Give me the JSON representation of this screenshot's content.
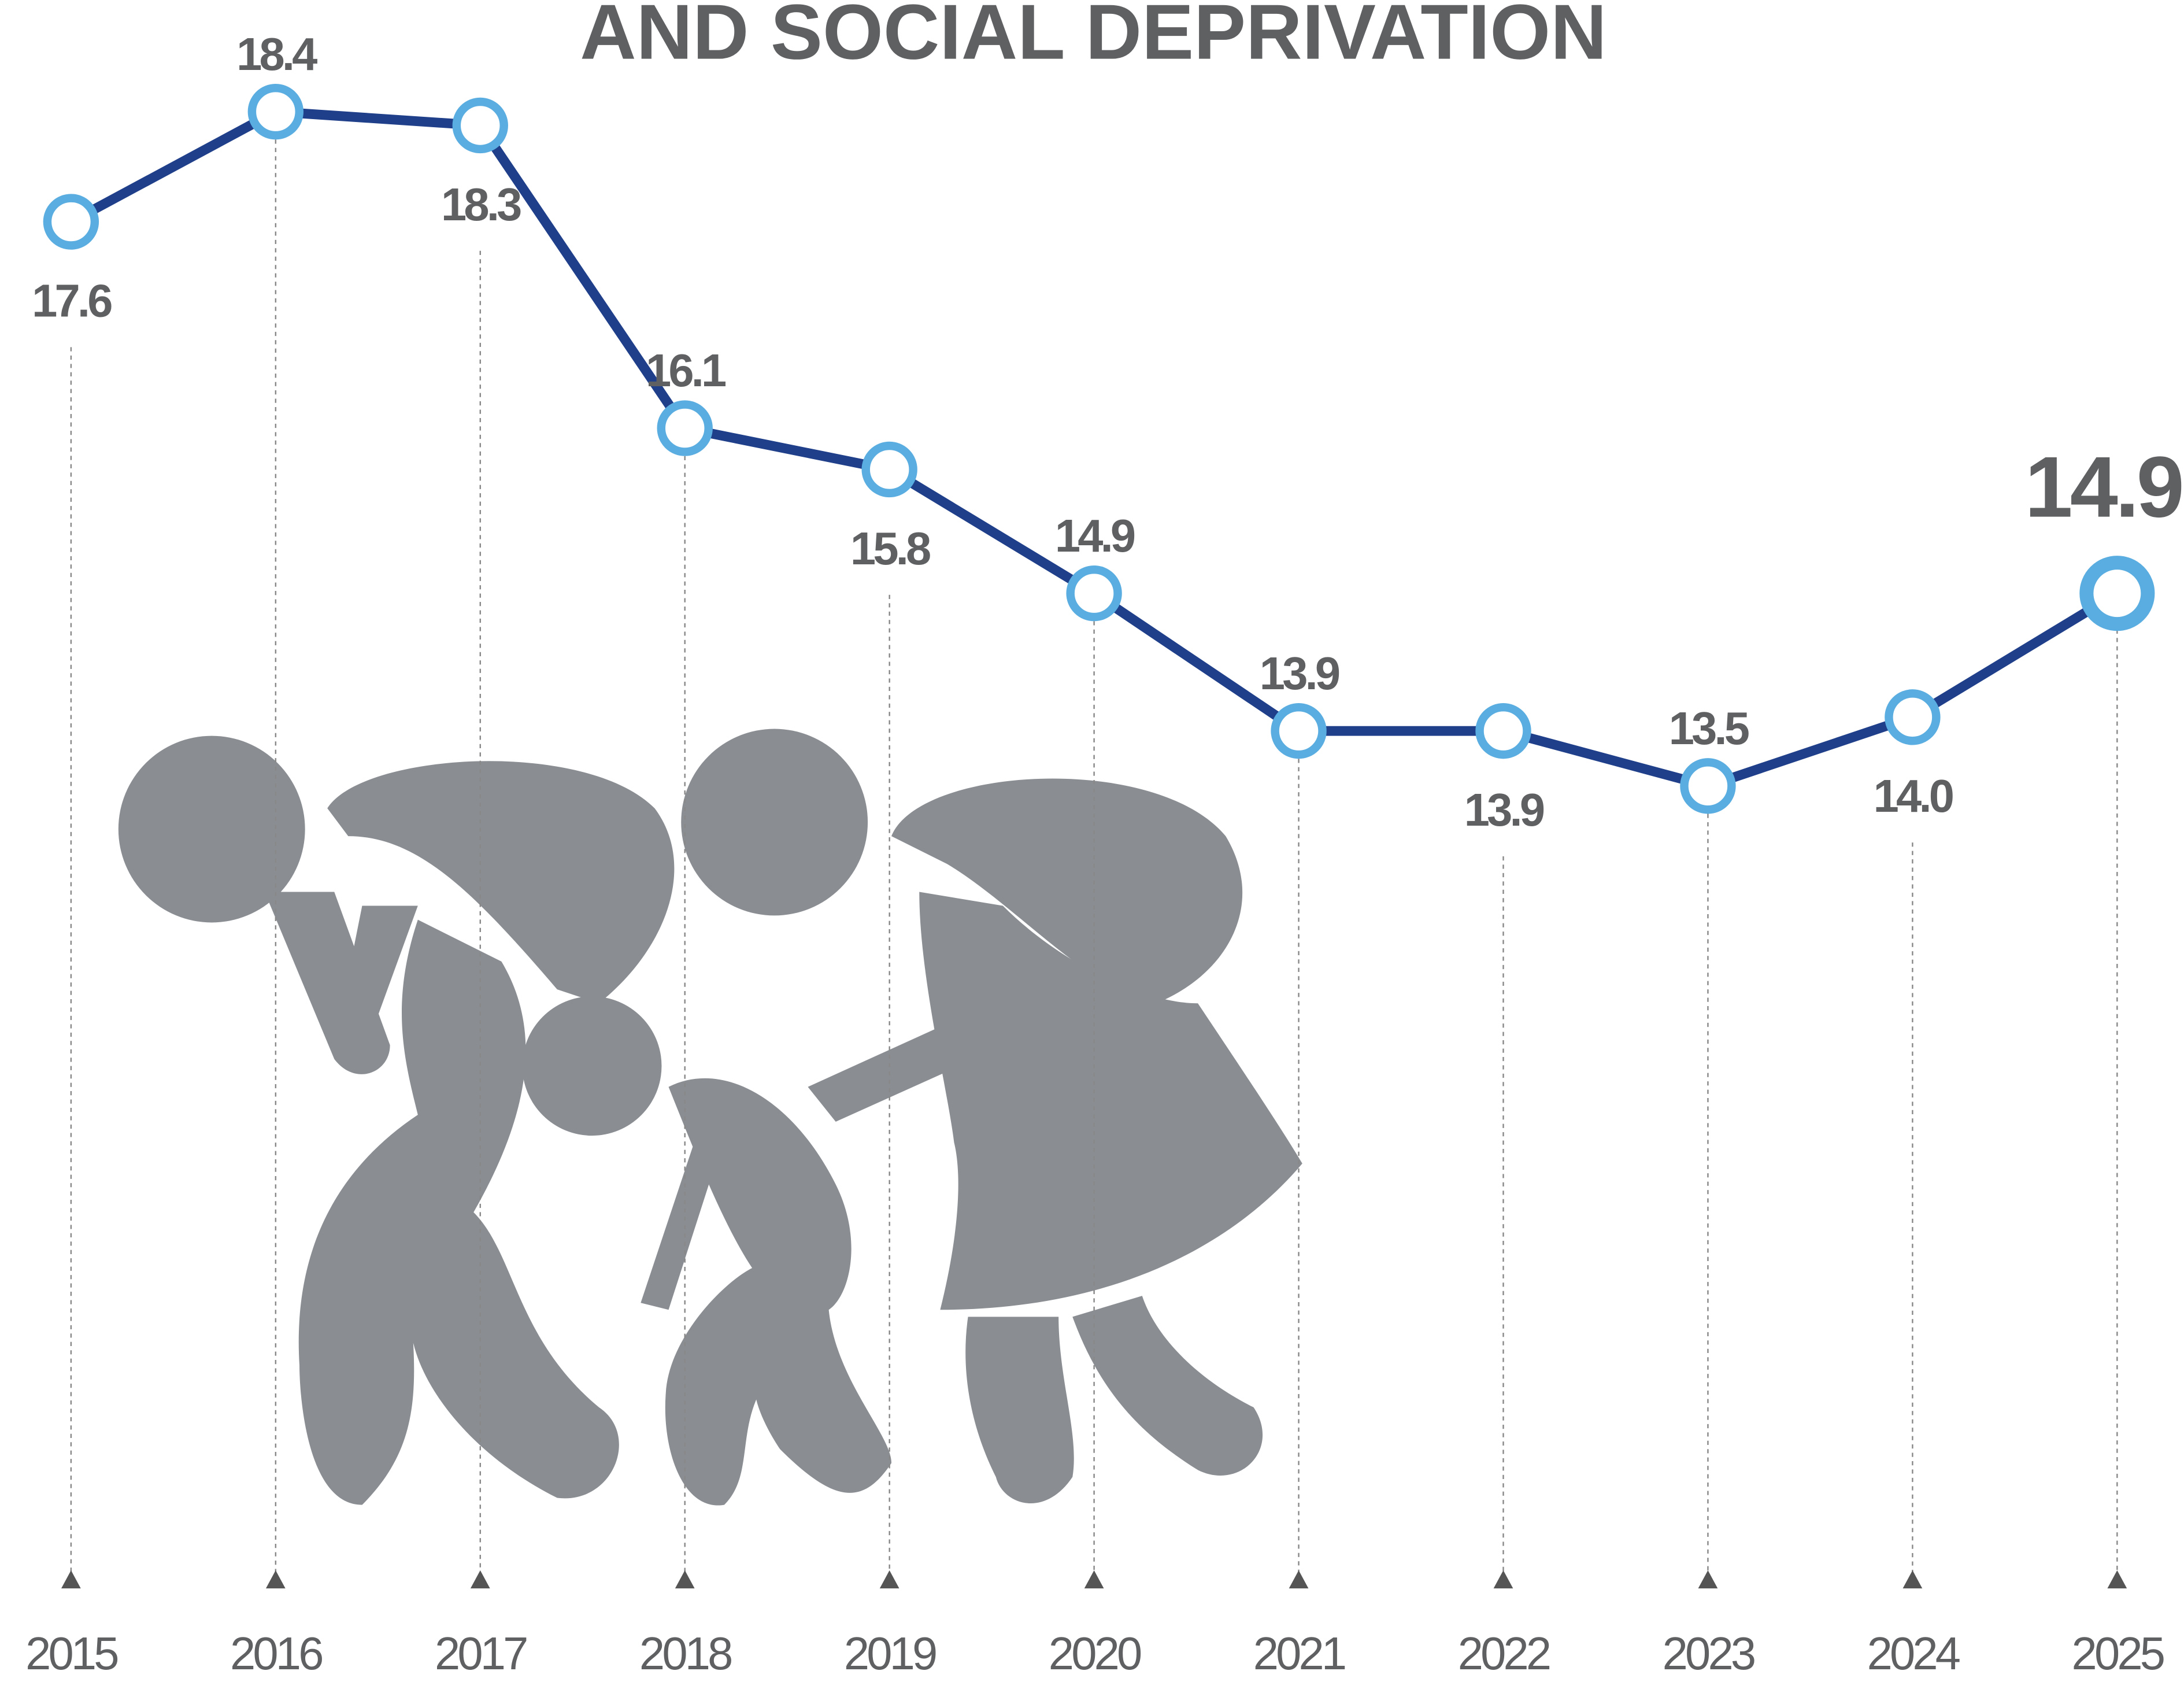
{
  "chart_data": {
    "type": "line",
    "title": "AND SOCIAL DEPRIVATION",
    "categories": [
      "2015",
      "2016",
      "2017",
      "2018",
      "2019",
      "2020",
      "2021",
      "2022",
      "2023",
      "2024",
      "2025"
    ],
    "series": [
      {
        "color": "#1f3f8a",
        "marker_color": "#5aade0",
        "values": [
          17.6,
          18.4,
          18.3,
          16.1,
          15.8,
          14.9,
          13.9,
          13.9,
          13.5,
          14.0,
          14.9
        ],
        "value_labels": [
          "17.6",
          "18.4",
          "18.3",
          "16.1",
          "15.8",
          "14.9",
          "13.9",
          "13.9",
          "13.5",
          "14.0",
          "14.9"
        ]
      }
    ]
  }
}
